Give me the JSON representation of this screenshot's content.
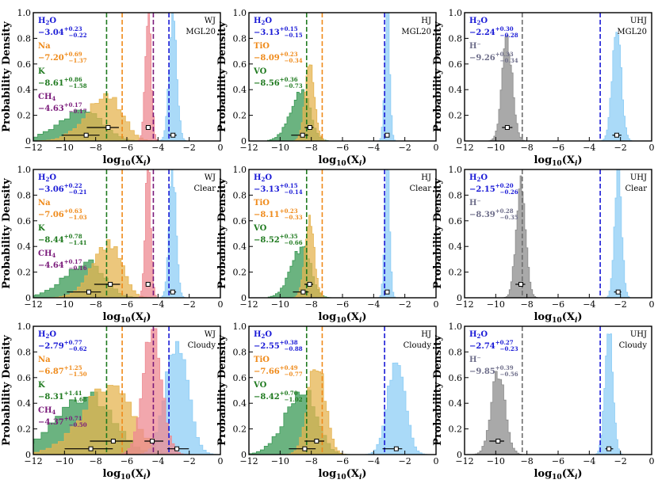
{
  "figure": {
    "ylabel": "Probability Density",
    "xlabel": "log10(Xi)"
  },
  "colors": {
    "H2O": "#8ecdf5",
    "H2O_line": "#1a1ad6",
    "H2O_text": "#1a1ad6",
    "Na": "#e6b450",
    "Na_line": "#ef8a1a",
    "Na_text": "#ef8a1a",
    "K": "#3a9a55",
    "K_line": "#1f7a1f",
    "K_text": "#1f7a1f",
    "CH4": "#ee8a92",
    "CH4_line": "#7a1a7a",
    "CH4_text": "#7a1a7a",
    "TiO": "#e6b450",
    "TiO_line": "#ef8a1a",
    "TiO_text": "#ef8a1a",
    "VO": "#3a9a55",
    "VO_line": "#1f7a1f",
    "VO_text": "#1f7a1f",
    "Hm": "#8c8c8c",
    "Hm_line": "#6e6e6e",
    "Hm_text": "#6e6e8a"
  },
  "chart_data": [
    {
      "type": "area",
      "planet": "WJ",
      "model": "MGL20",
      "xlim": [
        -12,
        0
      ],
      "ylim": [
        0,
        1.0
      ],
      "xticks": [
        -12,
        -10,
        -8,
        -6,
        -4,
        -2,
        0
      ],
      "yticks": [
        0,
        0.2,
        0.4,
        0.6,
        0.8,
        1.0
      ],
      "ytick_labels": [
        "0",
        "0.2",
        "0.4",
        "0.6",
        "0.8",
        "1.0"
      ],
      "species": [
        {
          "key": "H2O",
          "label": "H2O",
          "median": -3.04,
          "up": "+0.23",
          "lo": "−0.22",
          "shown": "−3.04",
          "width": 0.24,
          "peak": 0.98,
          "truth": -3.3
        },
        {
          "key": "Na",
          "label": "Na",
          "median": -7.2,
          "up": "+0.69",
          "lo": "−1.37",
          "shown": "−7.20",
          "width": 0.9,
          "peak": 0.36,
          "truth": -6.3
        },
        {
          "key": "K",
          "label": "K",
          "median": -8.61,
          "up": "+0.86",
          "lo": "−1.58",
          "shown": "−8.61",
          "width": 1.1,
          "peak": 0.24,
          "truth": -7.3
        },
        {
          "key": "CH4",
          "label": "CH4",
          "median": -4.63,
          "up": "+0.17",
          "lo": "−0.17",
          "shown": "−4.63",
          "width": 0.18,
          "peak": 1.05,
          "truth": -4.3
        }
      ]
    },
    {
      "type": "area",
      "planet": "HJ",
      "model": "MGL20",
      "xlim": [
        -12,
        0
      ],
      "ylim": [
        0,
        1.0
      ],
      "xticks": [
        -12,
        -10,
        -8,
        -6,
        -4,
        -2,
        0
      ],
      "yticks": [
        0,
        0.2,
        0.4,
        0.6,
        0.8,
        1.0
      ],
      "ytick_labels": [
        "0",
        "0.2",
        "0.4",
        "0.6",
        "0.8",
        "1.0"
      ],
      "species": [
        {
          "key": "H2O",
          "label": "H2O",
          "median": -3.13,
          "up": "+0.15",
          "lo": "−0.15",
          "shown": "−3.13",
          "width": 0.15,
          "peak": 1.05,
          "truth": -3.3
        },
        {
          "key": "TiO",
          "label": "TiO",
          "median": -8.09,
          "up": "+0.23",
          "lo": "−0.34",
          "shown": "−8.09",
          "width": 0.3,
          "peak": 0.6,
          "truth": -7.3
        },
        {
          "key": "VO",
          "label": "VO",
          "median": -8.56,
          "up": "+0.36",
          "lo": "−0.73",
          "shown": "−8.56",
          "width": 0.5,
          "peak": 0.38,
          "truth": -8.3
        }
      ]
    },
    {
      "type": "area",
      "planet": "UHJ",
      "model": "MGL20",
      "xlim": [
        -12,
        0
      ],
      "ylim": [
        0,
        1.0
      ],
      "xticks": [
        -12,
        -10,
        -8,
        -6,
        -4,
        -2,
        0
      ],
      "yticks": [
        0,
        0.2,
        0.4,
        0.6,
        0.8,
        1.0
      ],
      "ytick_labels": [
        "0",
        "0.2",
        "0.4",
        "0.6",
        "0.8",
        "1.0"
      ],
      "species": [
        {
          "key": "H2O",
          "label": "H2O",
          "median": -2.24,
          "up": "+0.30",
          "lo": "−0.28",
          "shown": "−2.24",
          "width": 0.28,
          "peak": 0.9,
          "truth": -3.3
        },
        {
          "key": "Hm",
          "label": "H⁻",
          "median": -9.26,
          "up": "+0.33",
          "lo": "−0.34",
          "shown": "−9.26",
          "width": 0.33,
          "peak": 0.78,
          "truth": -8.3
        }
      ]
    },
    {
      "type": "area",
      "planet": "WJ",
      "model": "Clear",
      "xlim": [
        -12,
        0
      ],
      "ylim": [
        0,
        1.0
      ],
      "xticks": [
        -12,
        -10,
        -8,
        -6,
        -4,
        -2,
        0
      ],
      "yticks": [
        0,
        0.2,
        0.4,
        0.6,
        0.8,
        1.0
      ],
      "ytick_labels": [
        "0",
        "0.2",
        "0.4",
        "0.6",
        "0.8",
        "1.0"
      ],
      "species": [
        {
          "key": "H2O",
          "label": "H2O",
          "median": -3.06,
          "up": "+0.22",
          "lo": "−0.21",
          "shown": "−3.06",
          "width": 0.22,
          "peak": 0.98,
          "truth": -3.3
        },
        {
          "key": "Na",
          "label": "Na",
          "median": -7.06,
          "up": "+0.63",
          "lo": "−1.03",
          "shown": "−7.06",
          "width": 0.75,
          "peak": 0.42,
          "truth": -6.3
        },
        {
          "key": "K",
          "label": "K",
          "median": -8.44,
          "up": "+0.78",
          "lo": "−1.41",
          "shown": "−8.44",
          "width": 1.0,
          "peak": 0.28,
          "truth": -7.3
        },
        {
          "key": "CH4",
          "label": "CH4",
          "median": -4.64,
          "up": "+0.17",
          "lo": "−0.16",
          "shown": "−4.64",
          "width": 0.17,
          "peak": 1.05,
          "truth": -4.3
        }
      ]
    },
    {
      "type": "area",
      "planet": "HJ",
      "model": "Clear",
      "xlim": [
        -12,
        0
      ],
      "ylim": [
        0,
        1.0
      ],
      "xticks": [
        -12,
        -10,
        -8,
        -6,
        -4,
        -2,
        0
      ],
      "yticks": [
        0,
        0.2,
        0.4,
        0.6,
        0.8,
        1.0
      ],
      "ytick_labels": [
        "0",
        "0.2",
        "0.4",
        "0.6",
        "0.8",
        "1.0"
      ],
      "species": [
        {
          "key": "H2O",
          "label": "H2O",
          "median": -3.13,
          "up": "+0.15",
          "lo": "−0.14",
          "shown": "−3.13",
          "width": 0.15,
          "peak": 1.05,
          "truth": -3.3
        },
        {
          "key": "TiO",
          "label": "TiO",
          "median": -8.11,
          "up": "+0.23",
          "lo": "−0.33",
          "shown": "−8.11",
          "width": 0.3,
          "peak": 0.6,
          "truth": -7.3
        },
        {
          "key": "VO",
          "label": "VO",
          "median": -8.52,
          "up": "+0.35",
          "lo": "−0.66",
          "shown": "−8.52",
          "width": 0.5,
          "peak": 0.4,
          "truth": -8.3
        }
      ]
    },
    {
      "type": "area",
      "planet": "UHJ",
      "model": "Clear",
      "xlim": [
        -12,
        0
      ],
      "ylim": [
        0,
        1.0
      ],
      "xticks": [
        -12,
        -10,
        -8,
        -6,
        -4,
        -2,
        0
      ],
      "yticks": [
        0,
        0.2,
        0.4,
        0.6,
        0.8,
        1.0
      ],
      "ytick_labels": [
        "0",
        "0.2",
        "0.4",
        "0.6",
        "0.8",
        "1.0"
      ],
      "species": [
        {
          "key": "H2O",
          "label": "H2O",
          "median": -2.15,
          "up": "+0.20",
          "lo": "−0.26",
          "shown": "−2.15",
          "width": 0.22,
          "peak": 1.02,
          "truth": -3.3
        },
        {
          "key": "Hm",
          "label": "H⁻",
          "median": -8.39,
          "up": "+0.28",
          "lo": "−0.35",
          "shown": "−8.39",
          "width": 0.3,
          "peak": 0.9,
          "truth": -8.3
        }
      ]
    },
    {
      "type": "area",
      "planet": "WJ",
      "model": "Cloudy",
      "xlim": [
        -12,
        0
      ],
      "ylim": [
        0,
        1.0
      ],
      "xticks": [
        -12,
        -10,
        -8,
        -6,
        -4,
        -2,
        0
      ],
      "yticks": [
        0,
        0.2,
        0.4,
        0.6,
        0.8,
        1.0
      ],
      "ytick_labels": [
        "0",
        "0.2",
        "0.4",
        "0.6",
        "0.8",
        "1.0"
      ],
      "species": [
        {
          "key": "H2O",
          "label": "H2O",
          "median": -2.79,
          "up": "+0.77",
          "lo": "−0.62",
          "shown": "−2.79",
          "width": 0.7,
          "peak": 0.9,
          "truth": -3.3
        },
        {
          "key": "Na",
          "label": "Na",
          "median": -6.87,
          "up": "+1.25",
          "lo": "−1.50",
          "shown": "−6.87",
          "width": 1.25,
          "peak": 0.55,
          "truth": -6.3
        },
        {
          "key": "K",
          "label": "K",
          "median": -8.31,
          "up": "+1.41",
          "lo": "−1.68",
          "shown": "−8.31",
          "width": 1.45,
          "peak": 0.45,
          "truth": -7.3
        },
        {
          "key": "CH4",
          "label": "CH4",
          "median": -4.37,
          "up": "+0.71",
          "lo": "−0.50",
          "shown": "−4.37",
          "width": 0.6,
          "peak": 0.95,
          "truth": -4.3
        }
      ]
    },
    {
      "type": "area",
      "planet": "HJ",
      "model": "Cloudy",
      "xlim": [
        -12,
        0
      ],
      "ylim": [
        0,
        1.0
      ],
      "xticks": [
        -12,
        -10,
        -8,
        -6,
        -4,
        -2,
        0
      ],
      "yticks": [
        0,
        0.2,
        0.4,
        0.6,
        0.8,
        1.0
      ],
      "ytick_labels": [
        "0",
        "0.2",
        "0.4",
        "0.6",
        "0.8",
        "1.0"
      ],
      "species": [
        {
          "key": "H2O",
          "label": "H2O",
          "median": -2.55,
          "up": "+0.38",
          "lo": "−0.88",
          "shown": "−2.55",
          "width": 0.55,
          "peak": 0.75,
          "truth": -3.3
        },
        {
          "key": "TiO",
          "label": "TiO",
          "median": -7.66,
          "up": "+0.49",
          "lo": "−0.77",
          "shown": "−7.66",
          "width": 0.55,
          "peak": 0.72,
          "truth": -7.3
        },
        {
          "key": "VO",
          "label": "VO",
          "median": -8.42,
          "up": "+0.70",
          "lo": "−1.02",
          "shown": "−8.42",
          "width": 0.8,
          "peak": 0.5,
          "truth": -8.3
        }
      ]
    },
    {
      "type": "area",
      "planet": "UHJ",
      "model": "Cloudy",
      "xlim": [
        -12,
        0
      ],
      "ylim": [
        0,
        1.0
      ],
      "xticks": [
        -12,
        -10,
        -8,
        -6,
        -4,
        -2,
        0
      ],
      "yticks": [
        0,
        0.2,
        0.4,
        0.6,
        0.8,
        1.0
      ],
      "ytick_labels": [
        "0",
        "0.2",
        "0.4",
        "0.6",
        "0.8",
        "1.0"
      ],
      "species": [
        {
          "key": "H2O",
          "label": "H2O",
          "median": -2.74,
          "up": "+0.27",
          "lo": "−0.23",
          "shown": "−2.74",
          "width": 0.25,
          "peak": 1.0,
          "truth": -3.3
        },
        {
          "key": "Hm",
          "label": "H⁻",
          "median": -9.85,
          "up": "+0.39",
          "lo": "−0.56",
          "shown": "−9.85",
          "width": 0.45,
          "peak": 0.62,
          "truth": -8.3
        }
      ]
    }
  ]
}
